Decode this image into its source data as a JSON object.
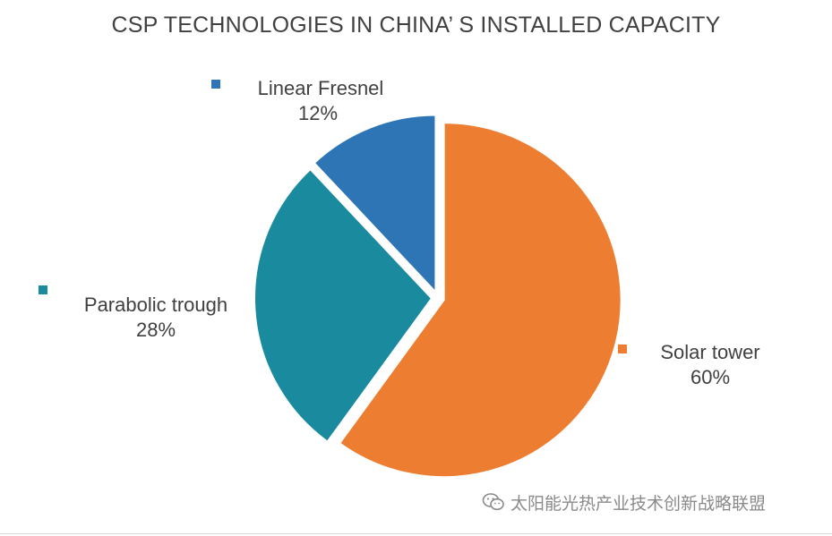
{
  "chart_data": {
    "type": "pie",
    "title": "CSP TECHNOLOGIES IN CHINA’ S INSTALLED CAPACITY",
    "categories": [
      "Solar tower",
      "Parabolic trough",
      "Linear Fresnel"
    ],
    "values": [
      60,
      28,
      12
    ],
    "value_labels": [
      "60%",
      "28%",
      "12%"
    ],
    "colors": [
      "#ED7D31",
      "#1A8A9E",
      "#2E75B6"
    ],
    "exploded": true,
    "legend": "data labels next to slices"
  },
  "watermark": {
    "text": "太阳能光热产业技术创新战略联盟",
    "icon": "wechat-icon"
  }
}
